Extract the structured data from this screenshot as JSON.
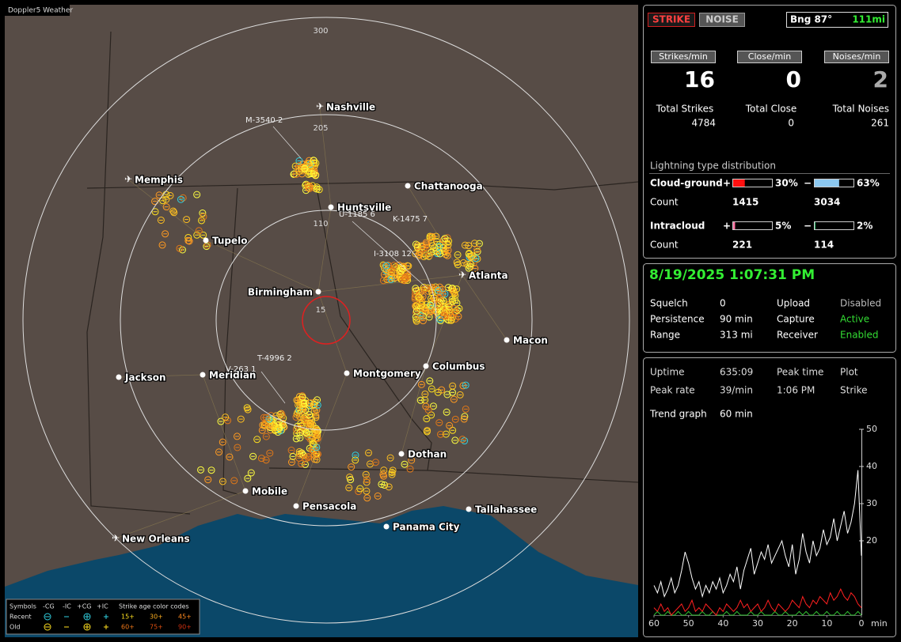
{
  "app_title": "Doppler5 Weather",
  "map": {
    "range_labels": [
      "300",
      "205",
      "110",
      "15"
    ],
    "cities": [
      "Nashville",
      "Memphis",
      "Chattanooga",
      "Huntsville",
      "Tupelo",
      "Atlanta",
      "Birmingham",
      "Macon",
      "Jackson",
      "Meridian",
      "Montgomery",
      "Columbus",
      "Dothan",
      "Mobile",
      "Pensacola",
      "Tallahassee",
      "Panama City",
      "New Orleans"
    ],
    "annotations": [
      "M-3540  2",
      "U-1185  6",
      "K-1475  7",
      "I-3108  12",
      "T-4996  2",
      "V-263  1"
    ]
  },
  "legend": {
    "header": [
      "Symbols",
      "-CG",
      "-IC",
      "+CG",
      "+IC",
      "Strike age color codes"
    ],
    "rows": [
      {
        "label": "Recent",
        "ages": [
          "15+",
          "30+",
          "45+"
        ]
      },
      {
        "label": "Old",
        "ages": [
          "60+",
          "75+",
          "90+"
        ]
      }
    ]
  },
  "header": {
    "strike_button": "STRIKE",
    "noise_button": "NOISE",
    "bearing": "Bng 87°",
    "distance": "111mi"
  },
  "rates": [
    {
      "label": "Strikes/min",
      "value": 16
    },
    {
      "label": "Close/min",
      "value": 0
    },
    {
      "label": "Noises/min",
      "value": 2
    }
  ],
  "totals": [
    {
      "label": "Total Strikes",
      "value": 4784
    },
    {
      "label": "Total Close",
      "value": 0
    },
    {
      "label": "Total Noises",
      "value": 261
    }
  ],
  "distribution": {
    "title": "Lightning type distribution",
    "rows": [
      {
        "label": "Cloud-ground",
        "pos_sign": "+",
        "pos_pct": {
          "value": 30,
          "label": "30%"
        },
        "neg_sign": "−",
        "neg_pct": {
          "value": 63,
          "label": "63%"
        },
        "count_label": "Count",
        "pos_count": 1415,
        "neg_count": 3034,
        "pos_color": "#ff1010",
        "neg_color": "#8cc8f0"
      },
      {
        "label": "Intracloud",
        "pos_sign": "+",
        "pos_pct": {
          "value": 5,
          "label": "5%"
        },
        "neg_sign": "−",
        "neg_pct": {
          "value": 2,
          "label": "2%"
        },
        "count_label": "Count",
        "pos_count": 221,
        "neg_count": 114,
        "pos_color": "#ff70a0",
        "neg_color": "#30c070"
      }
    ]
  },
  "status": {
    "datetime": "8/19/2025 1:07:31 PM",
    "rows": [
      [
        {
          "text": "Squelch"
        },
        {
          "text": "0"
        },
        {
          "text": "Upload"
        },
        {
          "text": "Disabled",
          "color": "#bbbbbb"
        }
      ],
      [
        {
          "text": "Persistence"
        },
        {
          "text": "90 min"
        },
        {
          "text": "Capture"
        },
        {
          "text": "Active",
          "color": "#33dd33"
        }
      ],
      [
        {
          "text": "Range"
        },
        {
          "text": "313 mi"
        },
        {
          "text": "Receiver"
        },
        {
          "text": "Enabled",
          "color": "#33dd33"
        }
      ]
    ]
  },
  "stats": {
    "rows": [
      [
        "Uptime",
        "635:09",
        "Peak time",
        "Plot"
      ],
      [
        "Peak rate",
        "39/min",
        "1:06 PM",
        "Strike"
      ],
      [
        "Trend graph",
        "60 min"
      ]
    ]
  },
  "chart_data": {
    "type": "line",
    "x_label": "min",
    "x": [
      60,
      59,
      58,
      57,
      56,
      55,
      54,
      53,
      52,
      51,
      50,
      49,
      48,
      47,
      46,
      45,
      44,
      43,
      42,
      41,
      40,
      39,
      38,
      37,
      36,
      35,
      34,
      33,
      32,
      31,
      30,
      29,
      28,
      27,
      26,
      25,
      24,
      23,
      22,
      21,
      20,
      19,
      18,
      17,
      16,
      15,
      14,
      13,
      12,
      11,
      10,
      9,
      8,
      7,
      6,
      5,
      4,
      3,
      2,
      1,
      0
    ],
    "xlim": [
      60,
      0
    ],
    "xticks": [
      60,
      50,
      40,
      30,
      20,
      10,
      0
    ],
    "ylim": [
      0,
      50
    ],
    "yticks": [
      20,
      30,
      40,
      50
    ],
    "series": [
      {
        "color": "#ffffff",
        "values": [
          8,
          6,
          9,
          5,
          7,
          10,
          6,
          8,
          12,
          17,
          14,
          10,
          7,
          9,
          5,
          8,
          6,
          9,
          7,
          10,
          6,
          8,
          11,
          9,
          13,
          7,
          12,
          15,
          18,
          11,
          14,
          17,
          15,
          19,
          14,
          16,
          18,
          20,
          16,
          13,
          19,
          11,
          15,
          22,
          17,
          14,
          20,
          16,
          18,
          23,
          19,
          21,
          26,
          20,
          24,
          28,
          22,
          25,
          30,
          39,
          16
        ]
      },
      {
        "color": "#ff2020",
        "values": [
          2,
          1,
          3,
          1,
          2,
          0,
          1,
          2,
          3,
          1,
          2,
          4,
          1,
          2,
          1,
          3,
          2,
          1,
          0,
          2,
          1,
          3,
          2,
          1,
          2,
          4,
          2,
          3,
          1,
          2,
          3,
          1,
          2,
          4,
          2,
          1,
          3,
          2,
          1,
          2,
          4,
          3,
          2,
          5,
          3,
          2,
          4,
          3,
          5,
          4,
          3,
          6,
          4,
          5,
          7,
          5,
          4,
          6,
          5,
          3,
          2
        ]
      },
      {
        "color": "#30c030",
        "values": [
          0,
          1,
          0,
          0,
          1,
          0,
          0,
          1,
          0,
          0,
          1,
          0,
          0,
          0,
          1,
          0,
          0,
          1,
          0,
          0,
          0,
          1,
          0,
          0,
          1,
          0,
          0,
          0,
          1,
          0,
          0,
          1,
          0,
          0,
          0,
          1,
          0,
          0,
          1,
          0,
          0,
          0,
          1,
          0,
          1,
          0,
          0,
          1,
          0,
          0,
          1,
          0,
          0,
          1,
          0,
          0,
          1,
          0,
          0,
          1,
          0
        ]
      }
    ]
  }
}
